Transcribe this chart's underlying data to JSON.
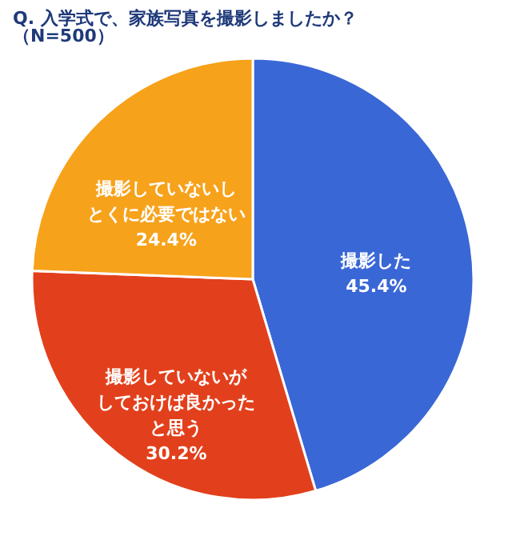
{
  "chart_data": {
    "type": "pie",
    "title": "Q. 入学式で、家族写真を撮影しましたか？",
    "subtitle": "（N=500）",
    "categories": [
      "撮影した",
      "撮影していないがしておけば良かったと思う",
      "撮影していないしとくに必要ではない"
    ],
    "values": [
      45.4,
      30.2,
      24.4
    ],
    "value_labels": [
      "45.4%",
      "30.2%",
      "24.4%"
    ],
    "colors": [
      "#3a67d6",
      "#e2401c",
      "#f7a21b"
    ],
    "legend": false
  }
}
